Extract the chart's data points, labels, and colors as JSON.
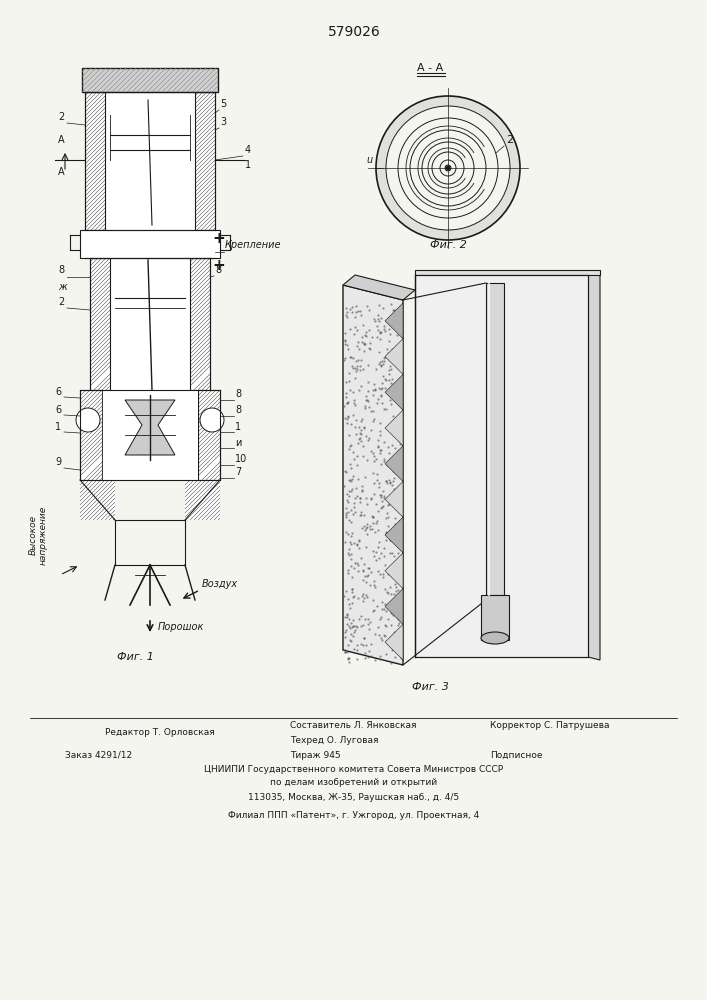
{
  "patent_number": "579026",
  "bg_color": "#f5f5f0",
  "line_color": "#1a1a1a",
  "bottom_texts": {
    "editor": "Редактор Т. Орловская",
    "compiler": "Составитель Л. Янковская",
    "techred": "Техред О. Луговая",
    "corrector": "Корректор С. Патрушева",
    "order": "Заказ 4291/12",
    "tirazh": "Тираж 945",
    "podpisnoe": "Подписное",
    "cniipи": "ЦНИИПИ Государственного комитета Совета Министров СССР",
    "po_delam": "по делам изобретений и открытий",
    "address": "113035, Москва, Ж-35, Раушская наб., д. 4/5",
    "filial": "Филиал ППП «Патент», г. Ужгород, ул. Проектная, 4"
  }
}
